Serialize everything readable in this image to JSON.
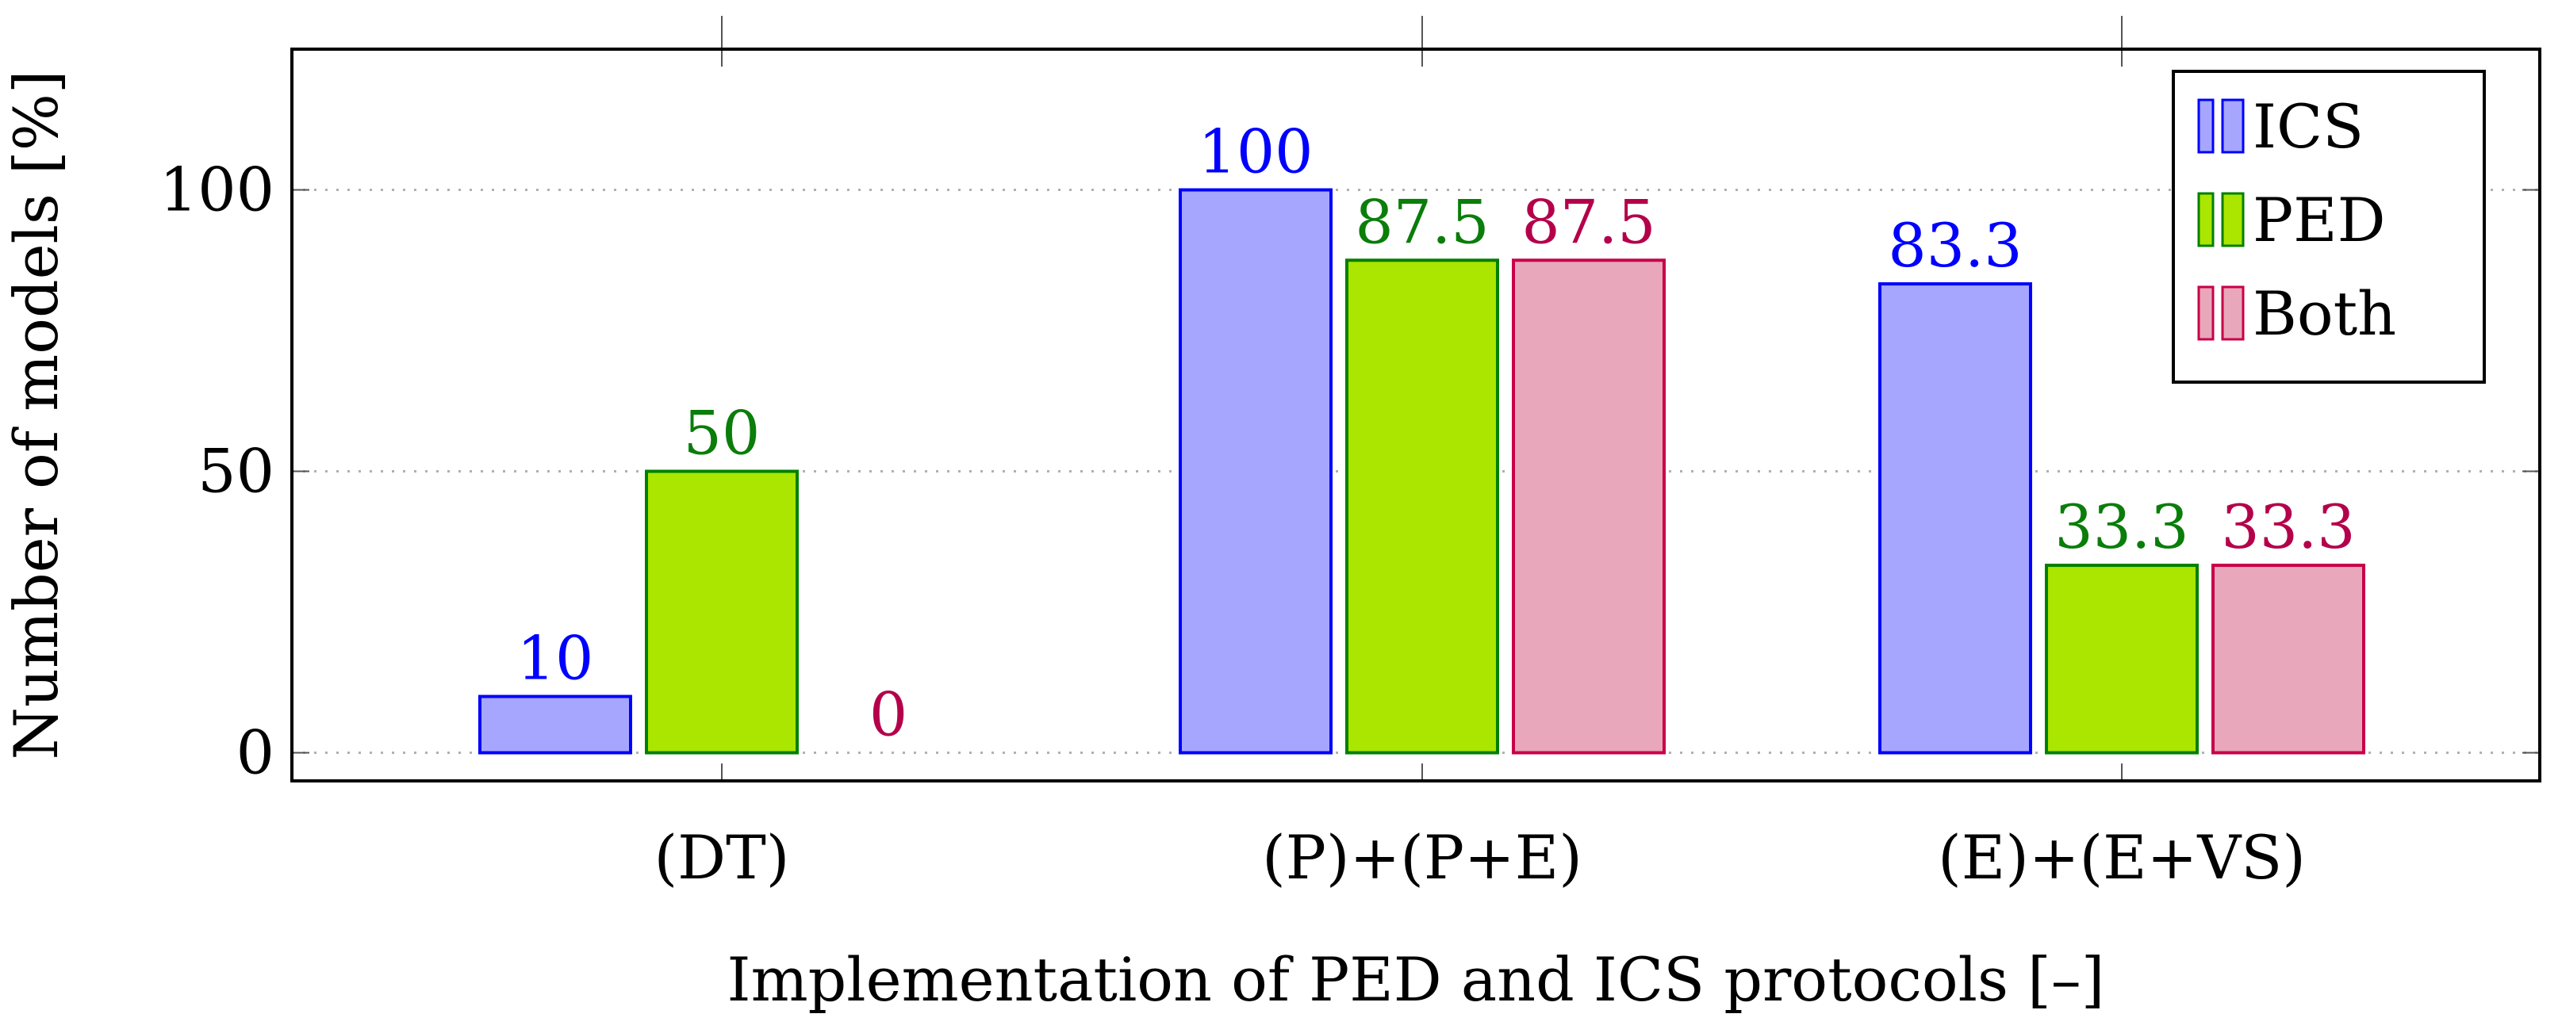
{
  "chart_data": {
    "type": "bar",
    "title": "",
    "xlabel": "Implementation of PED and ICS protocols [–]",
    "ylabel": "Number of models [%]",
    "ylim": [
      -5,
      125
    ],
    "yticks": [
      0,
      50,
      100
    ],
    "grid": "horizontal dotted at y ticks",
    "legend_position": "top-right",
    "categories": [
      "(DT)",
      "(P)+(P+E)",
      "(E)+(E+VS)"
    ],
    "series": [
      {
        "name": "ICS",
        "values": [
          10,
          100,
          83.3
        ],
        "labels": [
          "10",
          "100",
          "83.3"
        ],
        "fill": "#a6a6ff",
        "stroke": "#0000ff",
        "label_color": "#0000ff"
      },
      {
        "name": "PED",
        "values": [
          50,
          87.5,
          33.3
        ],
        "labels": [
          "50",
          "87.5",
          "33.3"
        ],
        "fill": "#aae600",
        "stroke": "#008000",
        "label_color": "#0a7d0a"
      },
      {
        "name": "Both",
        "values": [
          0,
          87.5,
          33.3
        ],
        "labels": [
          "0",
          "87.5",
          "33.3"
        ],
        "fill": "#e8a7ba",
        "stroke": "#c8004b",
        "label_color": "#b4004b"
      }
    ]
  }
}
